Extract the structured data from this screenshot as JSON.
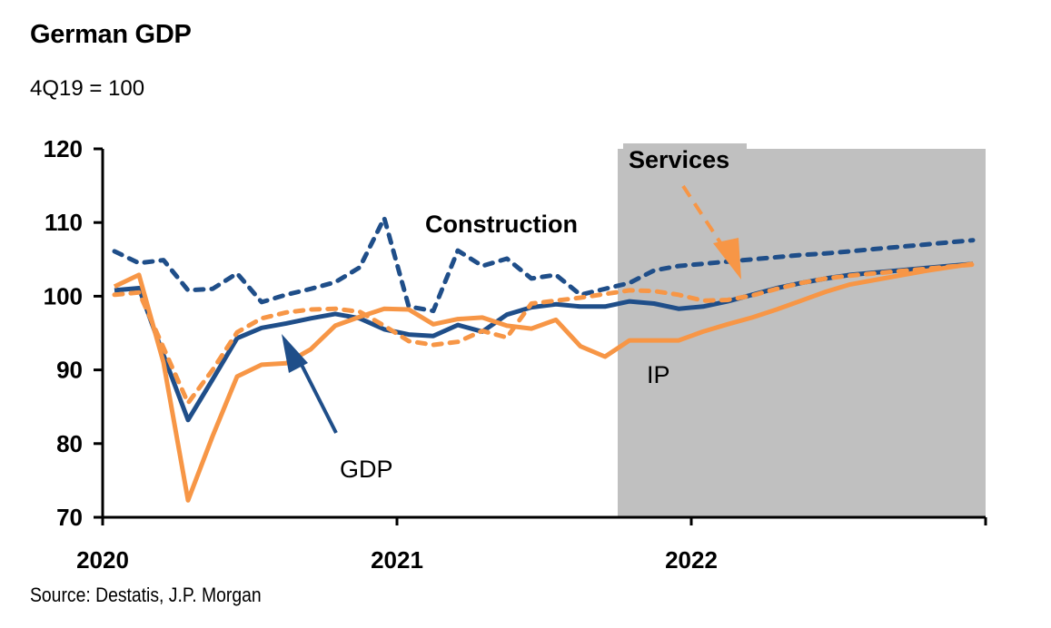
{
  "chart_data": {
    "type": "line",
    "title": "German GDP",
    "subtitle": "4Q19 = 100",
    "source": "Source: Destatis, J.P. Morgan",
    "xlabel": "",
    "ylabel": "",
    "ylim": [
      70,
      120
    ],
    "yticks": [
      70,
      80,
      90,
      100,
      110,
      120
    ],
    "ytick_labels": [
      "70",
      "80",
      "90",
      "100",
      "110",
      "120"
    ],
    "xtick_labels": [
      "2020",
      "2021",
      "2022"
    ],
    "x_frequency": "monthly",
    "x": [
      "Jan-20",
      "Feb-20",
      "Mar-20",
      "Apr-20",
      "May-20",
      "Jun-20",
      "Jul-20",
      "Aug-20",
      "Sep-20",
      "Oct-20",
      "Nov-20",
      "Dec-20",
      "Jan-21",
      "Feb-21",
      "Mar-21",
      "Apr-21",
      "May-21",
      "Jun-21",
      "Jul-21",
      "Aug-21",
      "Sep-21",
      "Oct-21",
      "Nov-21",
      "Dec-21",
      "Jan-22",
      "Feb-22",
      "Mar-22",
      "Apr-22",
      "May-22",
      "Jun-22",
      "Jul-22",
      "Aug-22",
      "Sep-22",
      "Oct-22",
      "Nov-22",
      "Dec-22"
    ],
    "grid": false,
    "legend": "none (inline annotations)",
    "forecast_shading": {
      "from": "Oct-21",
      "to": "Dec-22",
      "color": "#c0c0c0"
    },
    "series": [
      {
        "name": "Construction",
        "color": "#1f4e89",
        "style": "dashed",
        "values": [
          106.1,
          104.5,
          104.9,
          100.8,
          101.0,
          103.1,
          99.2,
          100.2,
          101.0,
          101.9,
          103.9,
          110.6,
          98.6,
          98.0,
          106.2,
          104.1,
          105.1,
          102.4,
          102.9,
          100.2,
          101.0,
          101.8,
          103.5,
          104.1,
          104.4,
          104.7,
          105.0,
          105.3,
          105.6,
          105.8,
          106.1,
          106.4,
          106.7,
          107.0,
          107.3,
          107.6
        ]
      },
      {
        "name": "GDP",
        "color": "#1f4e89",
        "style": "solid",
        "values": [
          100.8,
          101.1,
          92.0,
          83.2,
          88.7,
          94.3,
          95.7,
          96.3,
          97.0,
          97.6,
          97.0,
          95.5,
          94.8,
          94.6,
          96.1,
          95.2,
          97.5,
          98.5,
          98.9,
          98.6,
          98.6,
          99.3,
          99.0,
          98.3,
          98.6,
          99.3,
          100.2,
          101.1,
          101.8,
          102.4,
          102.9,
          103.2,
          103.5,
          103.8,
          104.1,
          104.4
        ]
      },
      {
        "name": "Services",
        "color": "#f79646",
        "style": "dashed",
        "values": [
          100.2,
          100.5,
          93.0,
          85.5,
          90.0,
          95.1,
          97.0,
          97.8,
          98.2,
          98.3,
          97.9,
          96.0,
          93.9,
          93.4,
          93.8,
          95.3,
          94.4,
          99.0,
          99.4,
          99.8,
          100.3,
          100.8,
          100.7,
          100.2,
          99.4,
          99.5,
          100.1,
          101.0,
          101.8,
          102.4,
          102.8,
          103.1,
          103.4,
          103.7,
          104.0,
          104.3
        ]
      },
      {
        "name": "IP",
        "color": "#f79646",
        "style": "solid",
        "values": [
          101.3,
          102.9,
          91.0,
          72.3,
          81.0,
          89.1,
          90.7,
          90.9,
          92.8,
          96.0,
          97.2,
          98.3,
          98.2,
          96.2,
          96.9,
          97.1,
          96.0,
          95.6,
          96.8,
          93.2,
          91.8,
          94.0,
          94.0,
          94.0,
          95.2,
          96.2,
          97.1,
          98.2,
          99.4,
          100.6,
          101.6,
          102.2,
          102.8,
          103.4,
          103.9,
          104.4
        ]
      }
    ],
    "annotations": [
      {
        "text": "Construction",
        "series": "Construction",
        "arrow": false
      },
      {
        "text": "Services",
        "series": "Services",
        "arrow": true,
        "arrow_color": "#f79646",
        "arrow_style": "dashed"
      },
      {
        "text": "GDP",
        "series": "GDP",
        "arrow": true,
        "arrow_color": "#1f4e89",
        "arrow_style": "solid"
      },
      {
        "text": "IP",
        "series": "IP",
        "arrow": false
      }
    ]
  }
}
